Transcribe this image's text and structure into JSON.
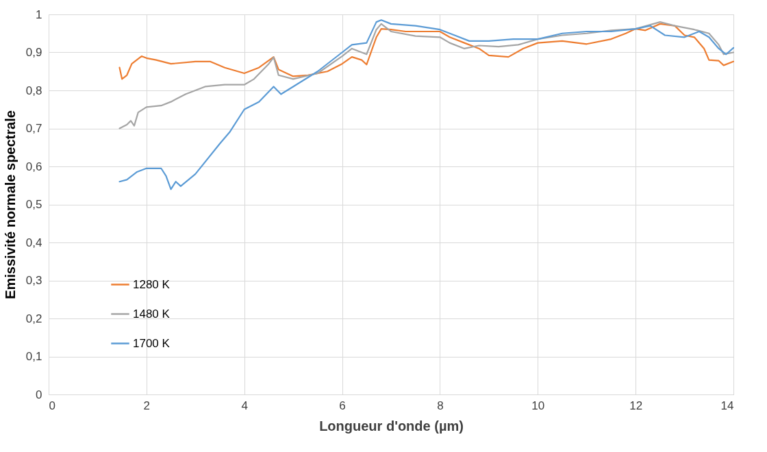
{
  "chart_data": {
    "type": "line",
    "xlabel": "Longueur d'onde (µm)",
    "ylabel": "Emissivité normale spectrale",
    "xlim": [
      0,
      14
    ],
    "xticks": [
      0,
      2,
      4,
      6,
      8,
      10,
      12,
      14
    ],
    "ylim": [
      0,
      1
    ],
    "yticks": [
      0,
      {
        "value": 0.1,
        "label": "0,1"
      },
      {
        "value": 0.2,
        "label": "0,2"
      },
      {
        "value": 0.3,
        "label": "0,3"
      },
      {
        "value": 0.4,
        "label": "0,4"
      },
      {
        "value": 0.5,
        "label": "0,5"
      },
      {
        "value": 0.6,
        "label": "0,6"
      },
      {
        "value": 0.7,
        "label": "0,7"
      },
      {
        "value": 0.8,
        "label": "0,8"
      },
      {
        "value": 0.9,
        "label": "0,9"
      },
      1
    ],
    "grid": true,
    "legend": "left",
    "marker": "none",
    "line_style": "solid",
    "series": [
      {
        "name": "1280 K",
        "color": "#ed7d31",
        "x": [
          1.45,
          1.5,
          1.6,
          1.7,
          1.8,
          1.9,
          2.0,
          2.2,
          2.5,
          3.0,
          3.3,
          3.6,
          4.0,
          4.3,
          4.6,
          4.7,
          5.0,
          5.3,
          5.7,
          6.0,
          6.2,
          6.4,
          6.5,
          6.7,
          6.8,
          7.0,
          7.3,
          7.6,
          8.0,
          8.2,
          8.5,
          8.8,
          9.0,
          9.4,
          9.7,
          10.0,
          10.5,
          11.0,
          11.5,
          11.8,
          12.0,
          12.2,
          12.5,
          12.8,
          13.0,
          13.2,
          13.4,
          13.5,
          13.7,
          13.8,
          14.0
        ],
        "values": [
          0.86,
          0.83,
          0.84,
          0.87,
          0.88,
          0.89,
          0.885,
          0.88,
          0.87,
          0.876,
          0.876,
          0.86,
          0.845,
          0.86,
          0.888,
          0.855,
          0.837,
          0.84,
          0.85,
          0.87,
          0.888,
          0.88,
          0.868,
          0.94,
          0.962,
          0.96,
          0.955,
          0.955,
          0.955,
          0.94,
          0.925,
          0.91,
          0.892,
          0.888,
          0.91,
          0.925,
          0.93,
          0.922,
          0.935,
          0.95,
          0.962,
          0.958,
          0.975,
          0.97,
          0.945,
          0.94,
          0.91,
          0.88,
          0.878,
          0.866,
          0.876
        ]
      },
      {
        "name": "1480 K",
        "color": "#a5a5a5",
        "x": [
          1.45,
          1.6,
          1.68,
          1.75,
          1.83,
          2.0,
          2.3,
          2.5,
          2.8,
          3.2,
          3.6,
          4.0,
          4.2,
          4.5,
          4.6,
          4.7,
          5.0,
          5.5,
          6.0,
          6.2,
          6.5,
          6.7,
          6.8,
          7.0,
          7.5,
          8.0,
          8.2,
          8.5,
          8.8,
          9.2,
          9.6,
          10.0,
          10.5,
          11.0,
          11.5,
          12.0,
          12.5,
          12.8,
          13.0,
          13.2,
          13.5,
          13.7,
          13.8,
          14.0
        ],
        "values": [
          0.7,
          0.71,
          0.72,
          0.707,
          0.742,
          0.756,
          0.76,
          0.77,
          0.79,
          0.81,
          0.815,
          0.815,
          0.83,
          0.87,
          0.887,
          0.84,
          0.83,
          0.845,
          0.89,
          0.91,
          0.895,
          0.96,
          0.975,
          0.955,
          0.943,
          0.94,
          0.925,
          0.91,
          0.918,
          0.915,
          0.92,
          0.935,
          0.945,
          0.95,
          0.958,
          0.962,
          0.98,
          0.97,
          0.965,
          0.96,
          0.95,
          0.92,
          0.895,
          0.9
        ]
      },
      {
        "name": "1700 K",
        "color": "#5b9bd5",
        "x": [
          1.45,
          1.6,
          1.8,
          2.0,
          2.3,
          2.4,
          2.5,
          2.6,
          2.7,
          3.0,
          3.5,
          3.7,
          4.0,
          4.3,
          4.6,
          4.75,
          5.0,
          5.5,
          6.0,
          6.2,
          6.5,
          6.7,
          6.8,
          7.0,
          7.5,
          8.0,
          8.3,
          8.6,
          9.0,
          9.5,
          10.0,
          10.5,
          11.0,
          11.5,
          12.0,
          12.3,
          12.6,
          13.0,
          13.3,
          13.5,
          13.7,
          13.85,
          14.0
        ],
        "values": [
          0.56,
          0.565,
          0.585,
          0.595,
          0.595,
          0.575,
          0.54,
          0.56,
          0.548,
          0.58,
          0.66,
          0.69,
          0.75,
          0.77,
          0.81,
          0.79,
          0.81,
          0.85,
          0.9,
          0.92,
          0.925,
          0.98,
          0.985,
          0.975,
          0.97,
          0.96,
          0.945,
          0.93,
          0.93,
          0.935,
          0.935,
          0.95,
          0.955,
          0.955,
          0.962,
          0.97,
          0.945,
          0.94,
          0.955,
          0.94,
          0.91,
          0.895,
          0.912
        ]
      }
    ]
  }
}
